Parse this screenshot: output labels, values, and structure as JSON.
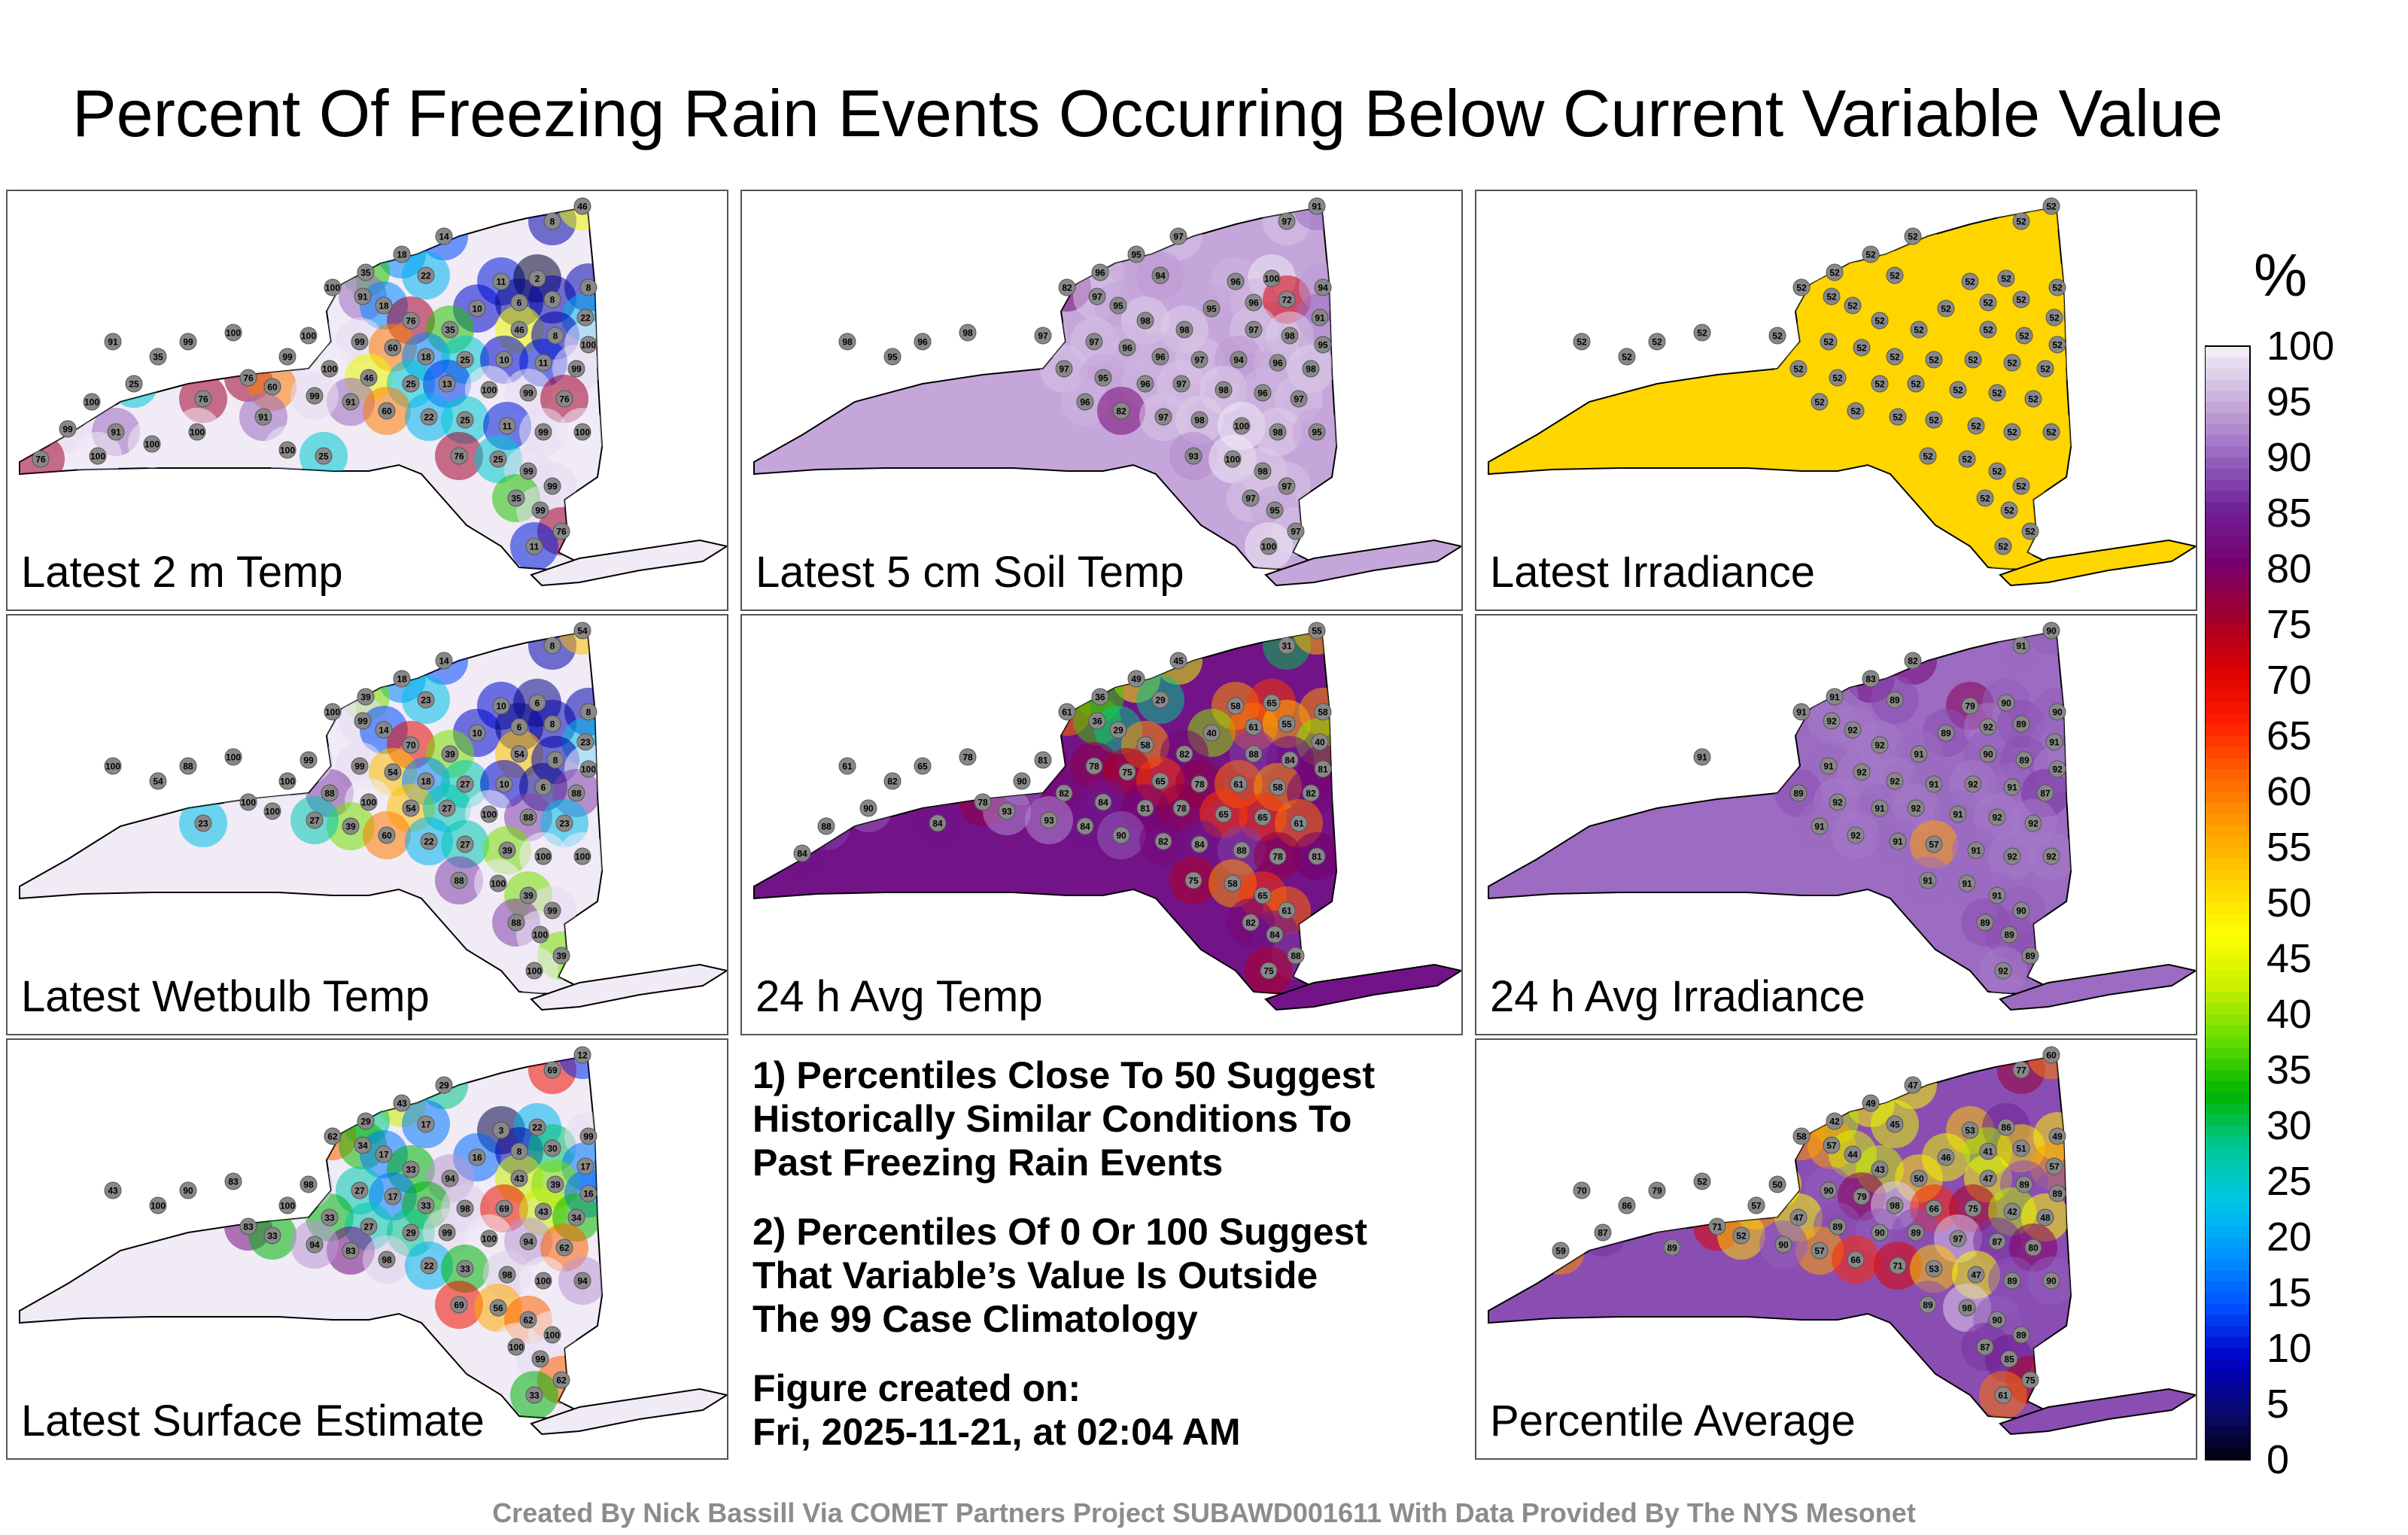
{
  "title": "Percent Of Freezing Rain Events Occurring Below Current Variable Value",
  "unit_label": "%",
  "notes": {
    "line1a": "1) Percentiles Close To 50 Suggest",
    "line1b": "Historically Similar Conditions To",
    "line1c": "Past Freezing Rain Events",
    "line2a": "2) Percentiles Of 0 Or 100 Suggest",
    "line2b": "That Variable’s Value Is Outside",
    "line2c": "The 99 Case Climatology",
    "created_label": "Figure created on:",
    "created_value": "Fri, 2025-11-21, at 02:04 AM"
  },
  "credit": "Created By Nick Bassill Via COMET Partners Project SUBAWD001611 With Data Provided By The NYS Mesonet",
  "chart_data": {
    "type": "map-choropleth-panels",
    "colorbar": {
      "ticks": [
        100,
        95,
        90,
        85,
        80,
        75,
        70,
        65,
        60,
        55,
        50,
        45,
        40,
        35,
        30,
        25,
        20,
        15,
        10,
        5,
        0
      ],
      "range": [
        0,
        100
      ],
      "colors": [
        "#000000",
        "#0a0a6e",
        "#0000c8",
        "#0050ff",
        "#0096ff",
        "#00c8e6",
        "#00c896",
        "#00b400",
        "#64dc00",
        "#c8f000",
        "#ffff00",
        "#ffd200",
        "#ffa000",
        "#ff6400",
        "#ff1e00",
        "#dc0000",
        "#a0002d",
        "#78006e",
        "#6e1e96",
        "#9664be",
        "#c8aadc",
        "#f0ebf5"
      ]
    },
    "panels": [
      {
        "label": "Latest 2 m Temp",
        "background": 100,
        "stations": [
          14,
          8,
          46,
          18,
          35,
          22,
          11,
          2,
          100,
          91,
          10,
          6,
          8,
          8,
          22,
          18,
          76,
          35,
          46,
          8,
          100,
          99,
          60,
          18,
          25,
          10,
          11,
          99,
          100,
          46,
          25,
          13,
          100,
          99,
          76,
          91,
          60,
          22,
          25,
          11,
          99,
          100,
          76,
          25,
          99,
          99,
          35,
          99,
          76,
          11,
          100,
          100,
          99,
          91,
          35,
          76,
          99,
          60,
          99,
          76,
          25,
          100,
          99,
          91,
          100,
          100,
          91,
          100,
          76,
          100,
          25
        ]
      },
      {
        "label": "Latest 5 cm Soil Temp",
        "background": 95,
        "stations": [
          97,
          97,
          91,
          95,
          96,
          94,
          96,
          100,
          82,
          97,
          95,
          96,
          72,
          94,
          91,
          95,
          98,
          98,
          97,
          98,
          95,
          97,
          96,
          96,
          97,
          94,
          96,
          98,
          97,
          95,
          96,
          97,
          98,
          96,
          97,
          96,
          82,
          97,
          98,
          100,
          98,
          95,
          93,
          100,
          98,
          97,
          97,
          95,
          97,
          100,
          98,
          97,
          96,
          98,
          95
        ]
      },
      {
        "label": "Latest Irradiance",
        "background": 52,
        "stations": [
          52,
          52,
          52,
          52,
          52,
          52,
          52,
          52,
          52,
          52,
          52,
          52,
          52,
          52,
          52,
          52,
          52,
          52,
          52,
          52,
          52,
          52,
          52,
          52,
          52,
          52,
          52,
          52,
          52,
          52,
          52,
          52,
          52,
          52,
          52,
          52,
          52,
          52,
          52,
          52,
          52,
          52,
          52,
          52,
          52,
          52,
          52,
          52,
          52,
          52,
          52,
          52,
          52,
          52,
          52
        ]
      },
      {
        "label": "Latest Wetbulb Temp",
        "background": 100,
        "stations": [
          14,
          8,
          54,
          18,
          39,
          23,
          10,
          6,
          100,
          99,
          10,
          6,
          8,
          8,
          23,
          14,
          70,
          39,
          54,
          8,
          100,
          99,
          54,
          18,
          27,
          10,
          6,
          88,
          88,
          100,
          54,
          27,
          100,
          88,
          23,
          39,
          60,
          22,
          27,
          39,
          100,
          100,
          88,
          100,
          39,
          99,
          88,
          100,
          39,
          100,
          100,
          99,
          88,
          100,
          54,
          100,
          100,
          100,
          27,
          23
        ]
      },
      {
        "label": "24 h Avg Temp",
        "background": 84,
        "stations": [
          45,
          31,
          55,
          49,
          36,
          29,
          58,
          65,
          61,
          36,
          40,
          61,
          55,
          58,
          40,
          29,
          58,
          82,
          88,
          84,
          81,
          78,
          75,
          65,
          78,
          61,
          58,
          82,
          82,
          84,
          81,
          78,
          65,
          65,
          61,
          84,
          90,
          82,
          84,
          88,
          78,
          81,
          75,
          58,
          65,
          61,
          82,
          84,
          88,
          75,
          78,
          81,
          65,
          61,
          82,
          78,
          90,
          93,
          93,
          84,
          90,
          88,
          84
        ]
      },
      {
        "label": "24 h Avg Irradiance",
        "background": 91,
        "stations": [
          82,
          91,
          90,
          83,
          91,
          89,
          79,
          90,
          91,
          92,
          89,
          92,
          89,
          90,
          91,
          92,
          92,
          91,
          90,
          89,
          92,
          91,
          92,
          92,
          91,
          92,
          91,
          87,
          89,
          92,
          91,
          92,
          91,
          92,
          92,
          91,
          92,
          91,
          57,
          91,
          92,
          92,
          91,
          91,
          91,
          90,
          89,
          89,
          89,
          92,
          91
        ]
      },
      {
        "label": "Latest Surface Estimate",
        "background": 100,
        "stations": [
          29,
          69,
          12,
          43,
          29,
          17,
          3,
          22,
          62,
          34,
          16,
          8,
          30,
          99,
          17,
          17,
          33,
          94,
          43,
          39,
          16,
          27,
          17,
          33,
          98,
          69,
          43,
          34,
          33,
          27,
          29,
          99,
          100,
          94,
          62,
          83,
          98,
          22,
          33,
          98,
          100,
          94,
          69,
          56,
          62,
          100,
          100,
          99,
          62,
          33,
          83,
          98,
          90,
          43,
          100,
          83,
          100,
          33,
          94
        ]
      },
      {
        "label": "Percentile Average",
        "background": 89,
        "stations": [
          47,
          77,
          60,
          49,
          42,
          45,
          53,
          86,
          58,
          57,
          46,
          41,
          51,
          49,
          57,
          44,
          43,
          50,
          47,
          89,
          89,
          90,
          79,
          98,
          66,
          75,
          42,
          48,
          47,
          89,
          90,
          89,
          97,
          87,
          80,
          57,
          66,
          71,
          53,
          47,
          89,
          90,
          89,
          98,
          90,
          89,
          87,
          85,
          75,
          61,
          52,
          50,
          79,
          70,
          86,
          71,
          57,
          52,
          90,
          89,
          87,
          59
        ]
      }
    ]
  }
}
